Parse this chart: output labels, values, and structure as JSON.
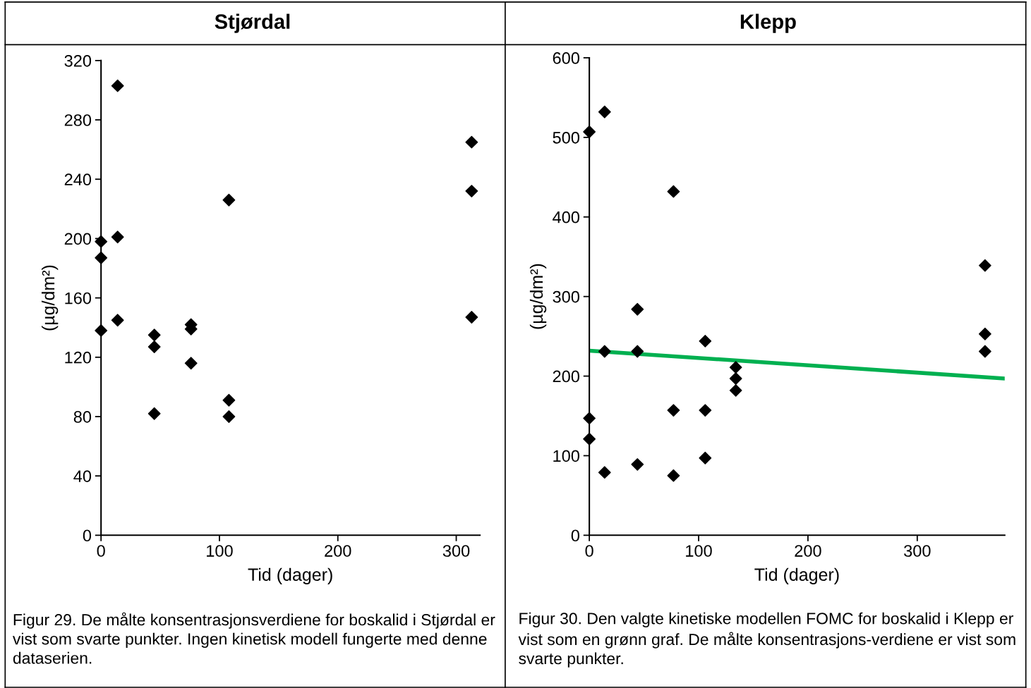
{
  "chart_data": [
    {
      "type": "scatter",
      "title": "Stjørdal",
      "xlabel": "Tid (dager)",
      "ylabel": "(µg/dm²)",
      "xlim": [
        0,
        320
      ],
      "xticks": [
        0,
        100,
        200,
        300
      ],
      "ylim": [
        0,
        320
      ],
      "yticks": [
        0,
        40,
        80,
        120,
        160,
        200,
        240,
        280,
        320
      ],
      "grid": false,
      "series": [
        {
          "color": "#000000",
          "marker": "diamond",
          "x": [
            0,
            0,
            0,
            14,
            14,
            14,
            45,
            45,
            45,
            76,
            76,
            76,
            108,
            108,
            108,
            313,
            313,
            313
          ],
          "values": [
            198,
            187,
            138,
            303,
            201,
            145,
            135,
            127,
            82,
            142,
            139,
            116,
            226,
            91,
            80,
            265,
            232,
            147
          ]
        }
      ],
      "annotations": [
        "Figur 29. De målte konsentrasjonsverdiene for boskalid i Stjørdal er vist som svarte punkter. Ingen kinetisk modell fungerte med denne dataserien."
      ]
    },
    {
      "type": "scatter",
      "title": "Klepp",
      "xlabel": "Tid (dager)",
      "ylabel": "(µg/dm²)",
      "xlim": [
        0,
        380
      ],
      "xticks": [
        0,
        100,
        200,
        300
      ],
      "ylim": [
        0,
        600
      ],
      "yticks": [
        0,
        100,
        200,
        300,
        400,
        500,
        600
      ],
      "grid": false,
      "series": [
        {
          "color": "#000000",
          "marker": "diamond",
          "x": [
            0,
            0,
            0,
            14,
            14,
            14,
            44,
            44,
            44,
            77,
            77,
            77,
            106,
            106,
            106,
            134,
            134,
            134,
            362,
            362,
            362
          ],
          "values": [
            507,
            147,
            121,
            532,
            231,
            79,
            284,
            231,
            89,
            432,
            157,
            75,
            244,
            157,
            97,
            211,
            197,
            182,
            339,
            253,
            231
          ]
        },
        {
          "type": "line",
          "color": "#00b050",
          "x": [
            0,
            380
          ],
          "values": [
            232,
            197
          ]
        }
      ],
      "annotations": [
        "Figur 30. Den valgte kinetiske modellen FOMC for boskalid i Klepp er vist som en grønn graf. De målte konsentrasjons-verdiene er vist som svarte punkter."
      ]
    }
  ]
}
